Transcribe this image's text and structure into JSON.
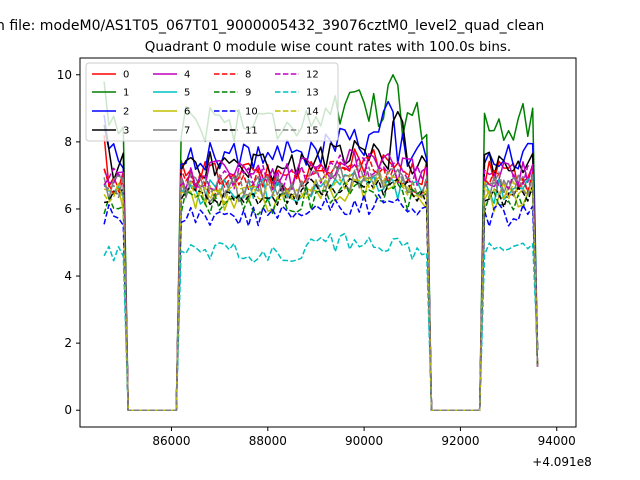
{
  "figure": {
    "suptitle": "n file: modeM0/AS1T05_067T01_9000005432_39076cztM0_level2_quad_clean",
    "offset_label": "+4.091e8"
  },
  "chart_data": {
    "type": "line",
    "title": "Quadrant 0 module wise count rates with 100.0s bins.",
    "xlabel": "",
    "ylabel": "",
    "x_offset": 409100000,
    "xlim": [
      84100,
      94400
    ],
    "ylim": [
      -0.5,
      10.5
    ],
    "xticks": [
      86000,
      88000,
      90000,
      92000,
      94000
    ],
    "yticks": [
      0,
      2,
      4,
      6,
      8,
      10
    ],
    "grid": false,
    "legend_placement": "upper-left",
    "legend_columns": 4,
    "segments": [
      {
        "start": 84600,
        "end": 85000
      },
      {
        "start": 86200,
        "end": 91300
      },
      {
        "start": 92500,
        "end": 93600
      }
    ],
    "gap_level": 0,
    "series": [
      {
        "name": "0",
        "color": "#ff0000",
        "style": "solid",
        "level": 7.0,
        "amp": 0.45
      },
      {
        "name": "1",
        "color": "#008000",
        "style": "solid",
        "level": 8.6,
        "amp": 0.6,
        "peak": {
          "x": 90600,
          "value": 10.0
        }
      },
      {
        "name": "2",
        "color": "#0000ff",
        "style": "solid",
        "level": 7.6,
        "amp": 0.5,
        "peak": {
          "x": 90500,
          "value": 9.2
        }
      },
      {
        "name": "3",
        "color": "#000000",
        "style": "solid",
        "level": 7.3,
        "amp": 0.5,
        "peak": {
          "x": 90700,
          "value": 8.9
        }
      },
      {
        "name": "4",
        "color": "#bf00bf",
        "style": "solid",
        "level": 7.0,
        "amp": 0.45
      },
      {
        "name": "5",
        "color": "#00bfbf",
        "style": "solid",
        "level": 6.5,
        "amp": 0.4
      },
      {
        "name": "6",
        "color": "#bfbf00",
        "style": "solid",
        "level": 6.3,
        "amp": 0.4
      },
      {
        "name": "7",
        "color": "#808080",
        "style": "solid",
        "level": 6.6,
        "amp": 0.4
      },
      {
        "name": "8",
        "color": "#ff0000",
        "style": "dashed",
        "level": 6.8,
        "amp": 0.4
      },
      {
        "name": "9",
        "color": "#008000",
        "style": "dashed",
        "level": 6.2,
        "amp": 0.4
      },
      {
        "name": "10",
        "color": "#0000ff",
        "style": "dashed",
        "level": 5.8,
        "amp": 0.35
      },
      {
        "name": "11",
        "color": "#000000",
        "style": "dashed",
        "level": 6.4,
        "amp": 0.35
      },
      {
        "name": "12",
        "color": "#bf00bf",
        "style": "dashed",
        "level": 6.9,
        "amp": 0.4
      },
      {
        "name": "13",
        "color": "#00bfbf",
        "style": "dashed",
        "level": 4.7,
        "amp": 0.3
      },
      {
        "name": "14",
        "color": "#bfbf00",
        "style": "dashed",
        "level": 6.5,
        "amp": 0.35
      },
      {
        "name": "15",
        "color": "#808080",
        "style": "dashed",
        "level": 6.7,
        "amp": 0.4
      }
    ]
  }
}
